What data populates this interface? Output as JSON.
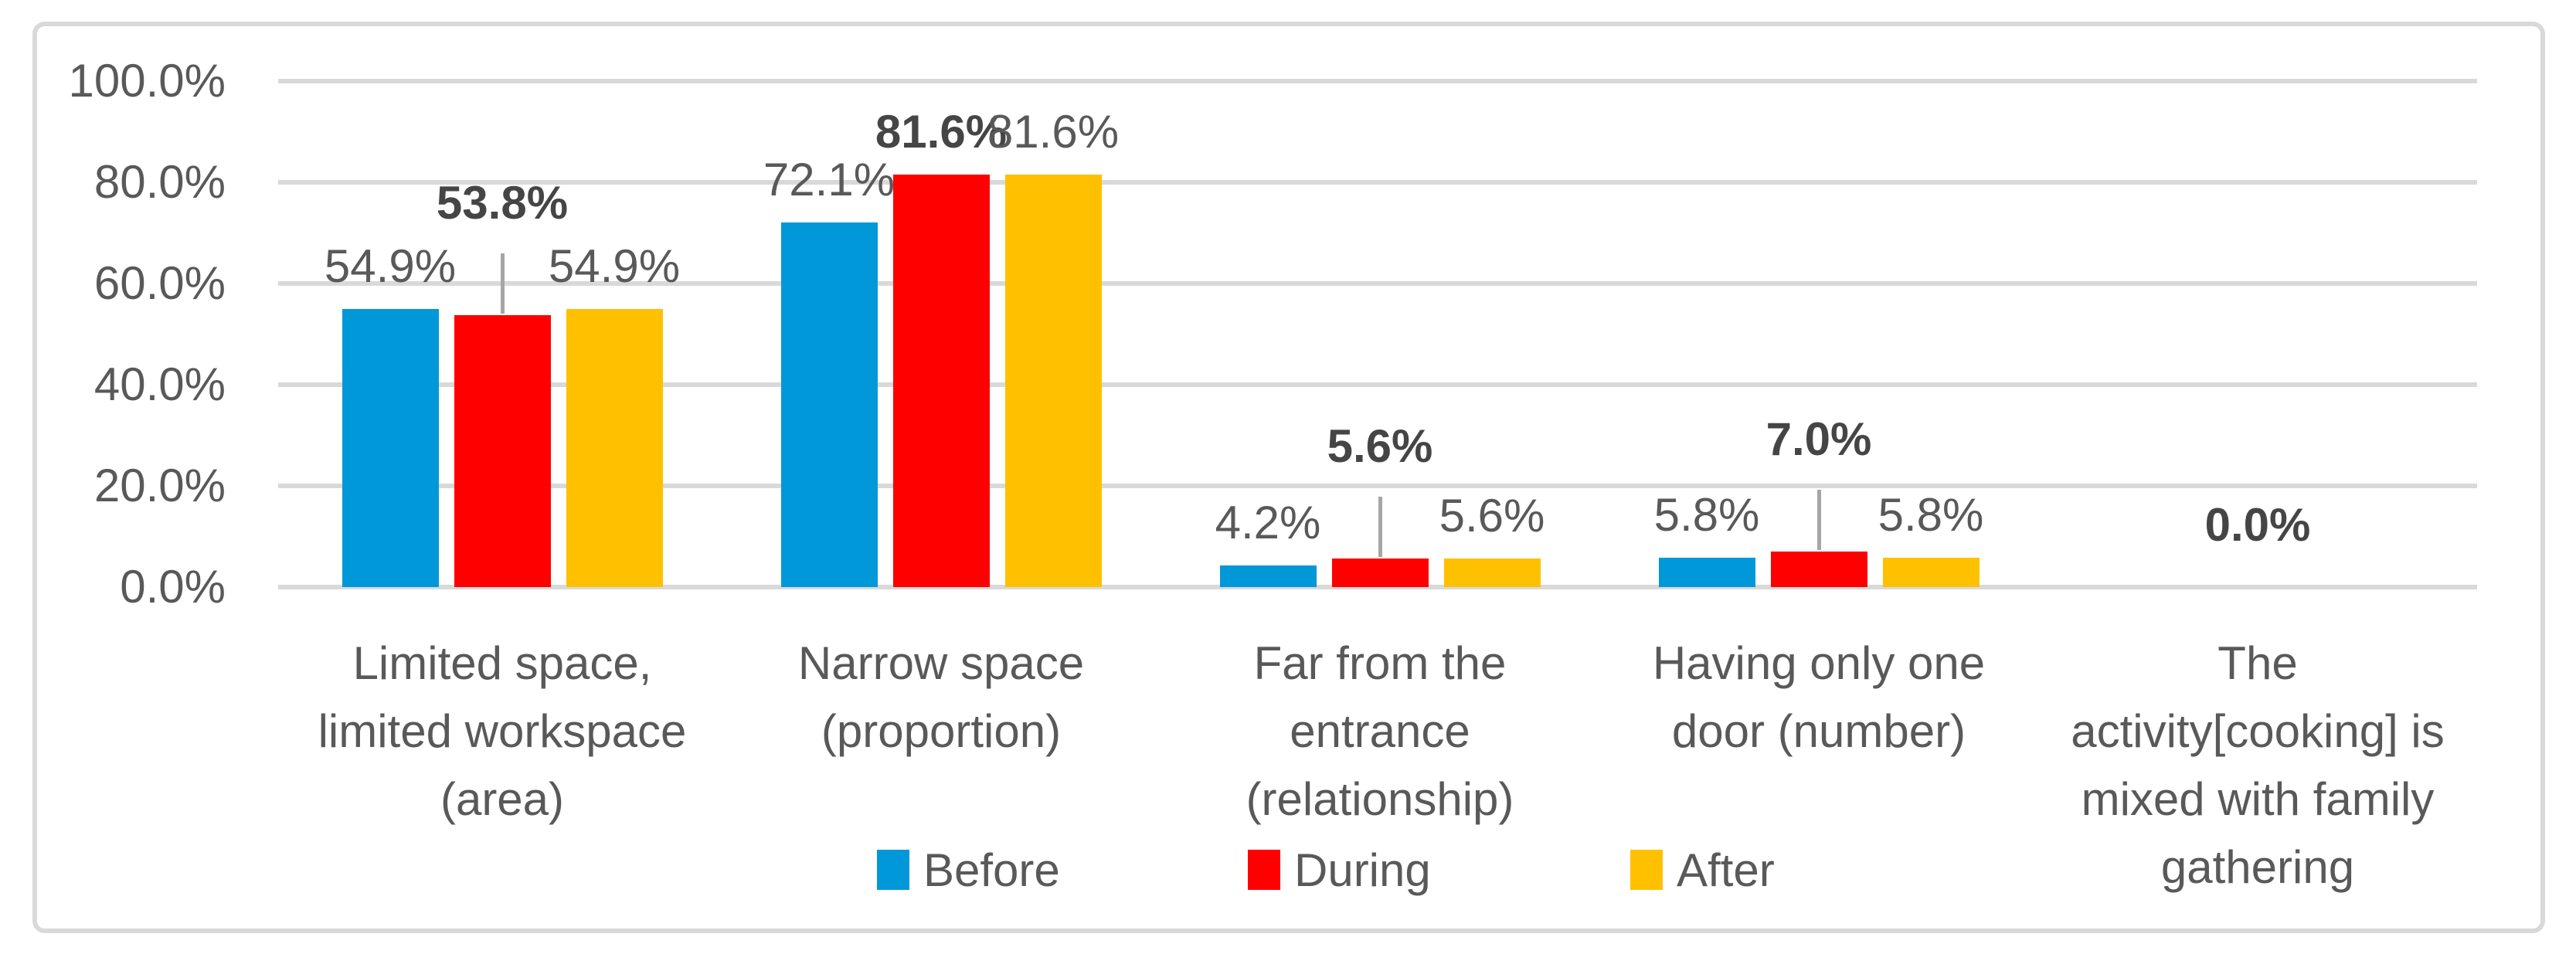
{
  "chart_data": {
    "type": "bar",
    "title": "",
    "categories": [
      "Limited space, limited workspace (area)",
      "Narrow space (proportion)",
      "Far from the entrance (relationship)",
      "Having only one door (number)",
      "The activity[cooking] is mixed with family gathering"
    ],
    "category_label_lines": [
      [
        "Limited space,",
        "limited workspace",
        "(area)"
      ],
      [
        "Narrow space",
        "(proportion)"
      ],
      [
        "Far from the",
        "entrance",
        "(relationship)"
      ],
      [
        "Having only one",
        "door (number)"
      ],
      [
        "The",
        "activity[cooking] is",
        "mixed with family",
        "gathering"
      ]
    ],
    "series": [
      {
        "name": "Before",
        "color": "#0098D8",
        "values": [
          54.9,
          72.1,
          4.2,
          5.8,
          0.0
        ],
        "data_labels": [
          "54.9%",
          "72.1%",
          "4.2%",
          "5.8%",
          ""
        ],
        "bold": false
      },
      {
        "name": "During",
        "color": "#FF0000",
        "values": [
          53.8,
          81.6,
          5.6,
          7.0,
          0.0
        ],
        "data_labels": [
          "53.8%",
          "81.6%",
          "5.6%",
          "7.0%",
          "0.0%"
        ],
        "bold": true,
        "raised_labels": [
          true,
          false,
          true,
          true,
          false
        ]
      },
      {
        "name": "After",
        "color": "#FFC000",
        "values": [
          54.9,
          81.6,
          5.6,
          5.8,
          0.0
        ],
        "data_labels": [
          "54.9%",
          "81.6%",
          "5.6%",
          "5.8%",
          ""
        ],
        "bold": false
      }
    ],
    "y_axis": {
      "min": 0,
      "max": 100,
      "step": 20,
      "tick_labels": [
        "100.0%",
        "80.0%",
        "60.0%",
        "40.0%",
        "20.0%",
        "0.0%"
      ]
    },
    "legend": {
      "position": "bottom",
      "entries": [
        "Before",
        "During",
        "After"
      ]
    },
    "grid": true,
    "colors": {
      "axis_text": "#595959",
      "data_label_text": "#595959",
      "bold_data_label_text": "#454545",
      "gridline": "#D9D9D9",
      "chart_border": "#D9D9D9",
      "leader_line": "#A6A6A6",
      "background": "#FFFFFF"
    }
  }
}
